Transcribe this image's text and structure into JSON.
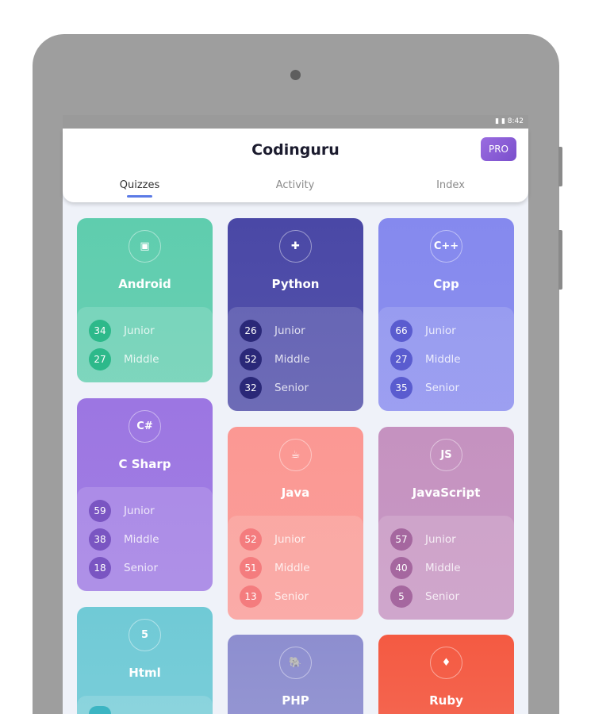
{
  "status": {
    "time": "8:42"
  },
  "header": {
    "title": "Codinguru",
    "pro_label": "PRO"
  },
  "tabs": [
    {
      "label": "Quizzes",
      "active": true
    },
    {
      "label": "Activity"
    },
    {
      "label": "Index"
    }
  ],
  "cards": [
    {
      "name": "Android",
      "icon": "android-icon",
      "glyph": "▣",
      "color": "#5fcdae",
      "badge": "#2db98a",
      "levels": [
        {
          "count": "34",
          "label": "Junior"
        },
        {
          "count": "27",
          "label": "Middle"
        }
      ]
    },
    {
      "name": "Python",
      "icon": "python-icon",
      "glyph": "✚",
      "color": "#4a48a6",
      "badge": "#2a2878",
      "levels": [
        {
          "count": "26",
          "label": "Junior"
        },
        {
          "count": "52",
          "label": "Middle"
        },
        {
          "count": "32",
          "label": "Senior"
        }
      ]
    },
    {
      "name": "Cpp",
      "icon": "cpp-icon",
      "glyph": "C++",
      "color": "#8589ee",
      "badge": "#5a5ccf",
      "levels": [
        {
          "count": "66",
          "label": "Junior"
        },
        {
          "count": "27",
          "label": "Middle"
        },
        {
          "count": "35",
          "label": "Senior"
        }
      ]
    },
    {
      "name": "C Sharp",
      "icon": "csharp-icon",
      "glyph": "C#",
      "color": "#9c76e2",
      "badge": "#7a55c2",
      "levels": [
        {
          "count": "59",
          "label": "Junior"
        },
        {
          "count": "38",
          "label": "Middle"
        },
        {
          "count": "18",
          "label": "Senior"
        }
      ]
    },
    {
      "name": "Java",
      "icon": "java-icon",
      "glyph": "☕",
      "color": "#fb9893",
      "badge": "#f47c7e",
      "levels": [
        {
          "count": "52",
          "label": "Junior"
        },
        {
          "count": "51",
          "label": "Middle"
        },
        {
          "count": "13",
          "label": "Senior"
        }
      ]
    },
    {
      "name": "JavaScript",
      "icon": "javascript-icon",
      "glyph": "JS",
      "color": "#c592c0",
      "badge": "#a5679f",
      "levels": [
        {
          "count": "57",
          "label": "Junior"
        },
        {
          "count": "40",
          "label": "Middle"
        },
        {
          "count": "5",
          "label": "Senior"
        }
      ]
    },
    {
      "name": "Html",
      "icon": "html5-icon",
      "glyph": "5",
      "color": "#70cad6",
      "badge": "#3cb5c3",
      "levels": []
    },
    {
      "name": "PHP",
      "icon": "php-elephant-icon",
      "glyph": "🐘",
      "color": "#8d8ecf",
      "badge": "#6a6bb8",
      "levels": []
    },
    {
      "name": "Ruby",
      "icon": "ruby-gem-icon",
      "glyph": "♦",
      "color": "#f45a42",
      "badge": "#d8402c",
      "levels": []
    }
  ]
}
